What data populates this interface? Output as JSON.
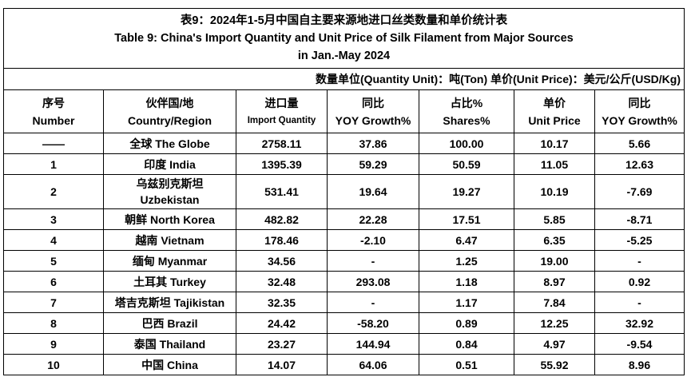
{
  "title_cn": "表9：2024年1-5月中国自主要来源地进口丝类数量和单价统计表",
  "title_en_line1": "Table 9: China's Import Quantity and Unit Price of Silk Filament from Major Sources",
  "title_en_line2": "in Jan.-May 2024",
  "unit_note": "数量单位(Quantity Unit)：吨(Ton)  单价(Unit Price)：美元/公斤(USD/Kg)",
  "headers": [
    {
      "cn": "序号",
      "en": "Number"
    },
    {
      "cn": "伙伴国/地",
      "en": "Country/Region"
    },
    {
      "cn": "进口量",
      "en": "Import Quantity"
    },
    {
      "cn": "同比",
      "en": "YOY Growth%"
    },
    {
      "cn": "占比%",
      "en": "Shares%"
    },
    {
      "cn": "单价",
      "en": "Unit Price"
    },
    {
      "cn": "同比",
      "en": "YOY Growth%"
    }
  ],
  "rows": [
    {
      "no": "——",
      "country": "全球 The Globe",
      "qty": "2758.11",
      "yoy": "37.86",
      "share": "100.00",
      "price": "10.17",
      "price_yoy": "5.66"
    },
    {
      "no": "1",
      "country": "印度 India",
      "qty": "1395.39",
      "yoy": "59.29",
      "share": "50.59",
      "price": "11.05",
      "price_yoy": "12.63"
    },
    {
      "no": "2",
      "country": "乌兹别克斯坦",
      "country2": "Uzbekistan",
      "qty": "531.41",
      "yoy": "19.64",
      "share": "19.27",
      "price": "10.19",
      "price_yoy": "-7.69"
    },
    {
      "no": "3",
      "country": "朝鲜  North Korea",
      "qty": "482.82",
      "yoy": "22.28",
      "share": "17.51",
      "price": "5.85",
      "price_yoy": "-8.71"
    },
    {
      "no": "4",
      "country": "越南 Vietnam",
      "qty": "178.46",
      "yoy": "-2.10",
      "share": "6.47",
      "price": "6.35",
      "price_yoy": "-5.25"
    },
    {
      "no": "5",
      "country": "缅甸 Myanmar",
      "qty": "34.56",
      "yoy": "-",
      "share": "1.25",
      "price": "19.00",
      "price_yoy": "-"
    },
    {
      "no": "6",
      "country": "土耳其 Turkey",
      "qty": "32.48",
      "yoy": "293.08",
      "share": "1.18",
      "price": "8.97",
      "price_yoy": "0.92"
    },
    {
      "no": "7",
      "country": "塔吉克斯坦 Tajikistan",
      "qty": "32.35",
      "yoy": "-",
      "share": "1.17",
      "price": "7.84",
      "price_yoy": "-"
    },
    {
      "no": "8",
      "country": "巴西 Brazil",
      "qty": "24.42",
      "yoy": "-58.20",
      "share": "0.89",
      "price": "12.25",
      "price_yoy": "32.92"
    },
    {
      "no": "9",
      "country": "泰国 Thailand",
      "qty": "23.27",
      "yoy": "144.94",
      "share": "0.84",
      "price": "4.97",
      "price_yoy": "-9.54"
    },
    {
      "no": "10",
      "country": "中国 China",
      "qty": "14.07",
      "yoy": "64.06",
      "share": "0.51",
      "price": "55.92",
      "price_yoy": "8.96"
    }
  ]
}
